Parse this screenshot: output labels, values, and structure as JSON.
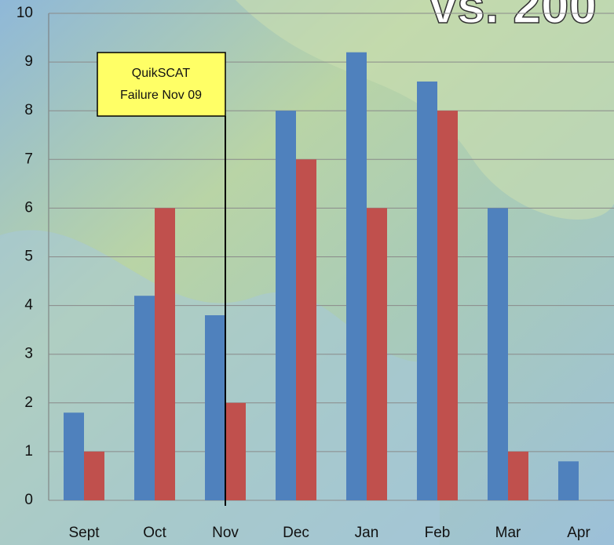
{
  "chart_data": {
    "type": "bar",
    "title": "vs. 200",
    "categories": [
      "Sept",
      "Oct",
      "Nov",
      "Dec",
      "Jan",
      "Feb",
      "Mar",
      "Apr"
    ],
    "series": [
      {
        "color": "#4f81bd",
        "values": [
          1.8,
          4.2,
          3.8,
          8,
          9.2,
          8.6,
          6,
          0.8
        ]
      },
      {
        "color": "#c0504d",
        "values": [
          1,
          6,
          2,
          7,
          6,
          8,
          1,
          null
        ]
      }
    ],
    "ylim": [
      0,
      10
    ],
    "yticks": [
      0,
      1,
      2,
      3,
      4,
      5,
      6,
      7,
      8,
      9,
      10
    ],
    "grid": true,
    "annotation": [
      "QuikSCAT",
      "Failure Nov 09"
    ]
  }
}
